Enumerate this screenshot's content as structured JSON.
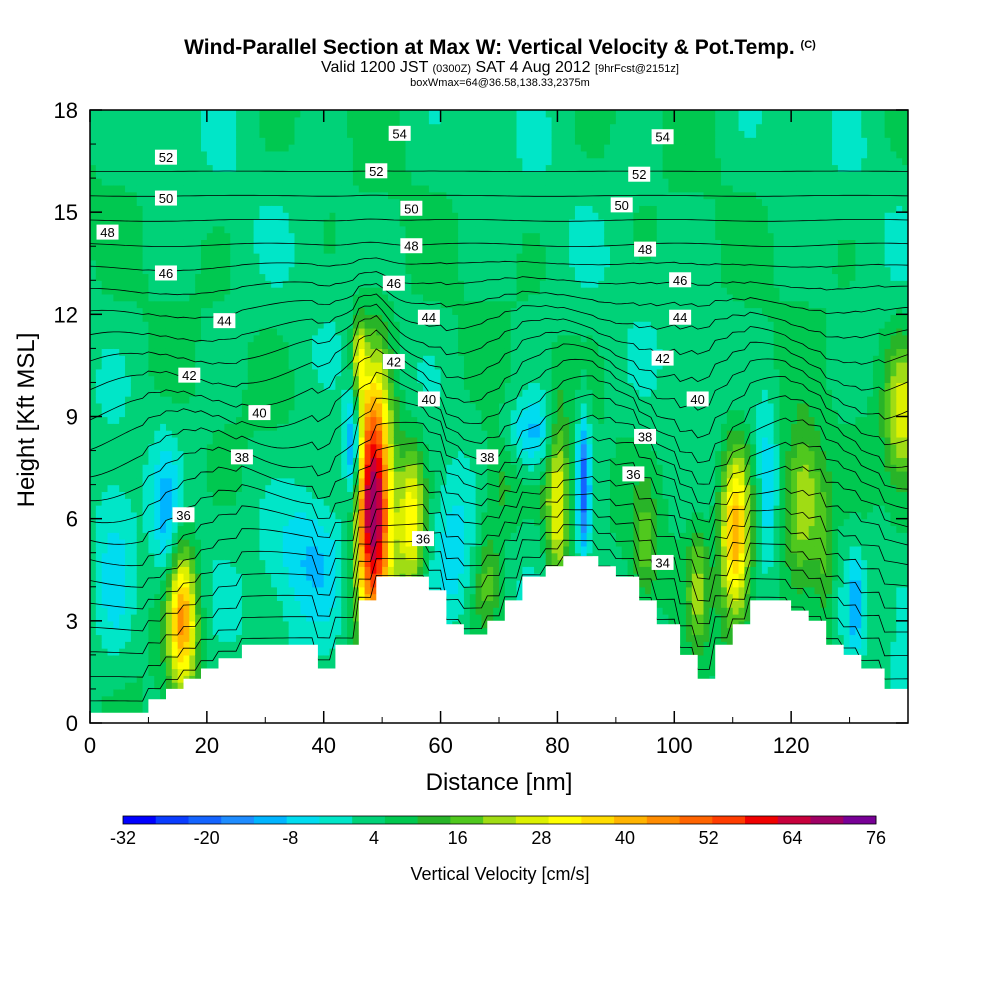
{
  "header": {
    "title": "Wind-Parallel Section at Max W: Vertical Velocity & Pot.Temp.",
    "title_mark": "(C)",
    "valid_prefix": "Valid 1200 JST",
    "valid_utc": "(0300Z)",
    "valid_date": "SAT 4 Aug 2012",
    "forecast_info": "[9hrFcst@2151z]",
    "box_info": "boxWmax=64@36.58,138.33,2375m"
  },
  "chart_data": {
    "type": "heatmap",
    "xlabel": "Distance [nm]",
    "ylabel": "Height [Kft MSL]",
    "xlim": [
      0,
      140
    ],
    "ylim": [
      0,
      18
    ],
    "x_ticks": [
      "0",
      "20",
      "40",
      "60",
      "80",
      "100",
      "120"
    ],
    "y_ticks": [
      "0",
      "3",
      "6",
      "9",
      "12",
      "15",
      "18"
    ],
    "colorbar": {
      "title": "Vertical Velocity [cm/s]",
      "tick_labels": [
        "-32",
        "-20",
        "-8",
        "4",
        "16",
        "28",
        "40",
        "52",
        "64",
        "76"
      ],
      "min": -32,
      "max": 76,
      "colors": [
        "#0000ff",
        "#0a3cff",
        "#1464ff",
        "#1e8cff",
        "#00b4ff",
        "#00dcf0",
        "#00e6c8",
        "#00d278",
        "#00c850",
        "#28b428",
        "#50c81e",
        "#a0dc14",
        "#dcf000",
        "#ffff00",
        "#ffdc00",
        "#ffb400",
        "#ff8c00",
        "#ff6400",
        "#ff3c00",
        "#f00000",
        "#c8003c",
        "#a00064",
        "#780096"
      ]
    },
    "theta_contours": {
      "units": "potential temperature",
      "labels": [
        {
          "text": "54",
          "x": 53,
          "y": 17.3
        },
        {
          "text": "54",
          "x": 98,
          "y": 17.2
        },
        {
          "text": "52",
          "x": 13,
          "y": 16.6
        },
        {
          "text": "52",
          "x": 49,
          "y": 16.2
        },
        {
          "text": "52",
          "x": 94,
          "y": 16.1
        },
        {
          "text": "50",
          "x": 13,
          "y": 15.4
        },
        {
          "text": "50",
          "x": 55,
          "y": 15.1
        },
        {
          "text": "50",
          "x": 91,
          "y": 15.2
        },
        {
          "text": "48",
          "x": 3,
          "y": 14.4
        },
        {
          "text": "48",
          "x": 55,
          "y": 14.0
        },
        {
          "text": "48",
          "x": 95,
          "y": 13.9
        },
        {
          "text": "46",
          "x": 13,
          "y": 13.2
        },
        {
          "text": "46",
          "x": 52,
          "y": 12.9
        },
        {
          "text": "46",
          "x": 101,
          "y": 13.0
        },
        {
          "text": "44",
          "x": 23,
          "y": 11.8
        },
        {
          "text": "44",
          "x": 58,
          "y": 11.9
        },
        {
          "text": "44",
          "x": 101,
          "y": 11.9
        },
        {
          "text": "42",
          "x": 17,
          "y": 10.2
        },
        {
          "text": "42",
          "x": 52,
          "y": 10.6
        },
        {
          "text": "42",
          "x": 98,
          "y": 10.7
        },
        {
          "text": "40",
          "x": 29,
          "y": 9.1
        },
        {
          "text": "40",
          "x": 58,
          "y": 9.5
        },
        {
          "text": "40",
          "x": 104,
          "y": 9.5
        },
        {
          "text": "38",
          "x": 26,
          "y": 7.8
        },
        {
          "text": "38",
          "x": 68,
          "y": 7.8
        },
        {
          "text": "38",
          "x": 95,
          "y": 8.4
        },
        {
          "text": "36",
          "x": 16,
          "y": 6.1
        },
        {
          "text": "36",
          "x": 57,
          "y": 5.4
        },
        {
          "text": "36",
          "x": 93,
          "y": 7.3
        },
        {
          "text": "34",
          "x": 98,
          "y": 4.7
        }
      ]
    },
    "terrain": [
      [
        0,
        0.3
      ],
      [
        10,
        0.3
      ],
      [
        10,
        0.7
      ],
      [
        13,
        0.7
      ],
      [
        13,
        1.0
      ],
      [
        16,
        1.0
      ],
      [
        16,
        1.3
      ],
      [
        19,
        1.3
      ],
      [
        19,
        1.6
      ],
      [
        22,
        1.6
      ],
      [
        22,
        1.9
      ],
      [
        26,
        1.9
      ],
      [
        26,
        2.3
      ],
      [
        39,
        2.3
      ],
      [
        39,
        1.6
      ],
      [
        42,
        1.6
      ],
      [
        42,
        2.3
      ],
      [
        46,
        2.3
      ],
      [
        46,
        3.6
      ],
      [
        49,
        3.6
      ],
      [
        49,
        4.3
      ],
      [
        58,
        4.3
      ],
      [
        58,
        3.9
      ],
      [
        61,
        3.9
      ],
      [
        61,
        2.9
      ],
      [
        64,
        2.9
      ],
      [
        64,
        2.6
      ],
      [
        68,
        2.6
      ],
      [
        68,
        3.0
      ],
      [
        71,
        3.0
      ],
      [
        71,
        3.6
      ],
      [
        74,
        3.6
      ],
      [
        74,
        4.3
      ],
      [
        78,
        4.3
      ],
      [
        78,
        4.6
      ],
      [
        81,
        4.6
      ],
      [
        81,
        4.9
      ],
      [
        87,
        4.9
      ],
      [
        87,
        4.6
      ],
      [
        90,
        4.6
      ],
      [
        90,
        4.3
      ],
      [
        94,
        4.3
      ],
      [
        94,
        3.6
      ],
      [
        97,
        3.6
      ],
      [
        97,
        2.9
      ],
      [
        101,
        2.9
      ],
      [
        101,
        2.0
      ],
      [
        104,
        2.0
      ],
      [
        104,
        1.3
      ],
      [
        107,
        1.3
      ],
      [
        107,
        2.3
      ],
      [
        110,
        2.3
      ],
      [
        110,
        2.9
      ],
      [
        113,
        2.9
      ],
      [
        113,
        3.6
      ],
      [
        120,
        3.6
      ],
      [
        120,
        3.3
      ],
      [
        123,
        3.3
      ],
      [
        123,
        3.0
      ],
      [
        126,
        3.0
      ],
      [
        126,
        2.3
      ],
      [
        129,
        2.3
      ],
      [
        129,
        2.0
      ],
      [
        132,
        2.0
      ],
      [
        132,
        1.6
      ],
      [
        136,
        1.6
      ],
      [
        136,
        1.0
      ],
      [
        140,
        1.0
      ]
    ],
    "w_features": [
      {
        "x": 48.5,
        "y": 6.5,
        "sx": 2.2,
        "sy": 2.6,
        "v": 70
      },
      {
        "x": 45.0,
        "y": 8.0,
        "sx": 1.0,
        "sy": 1.2,
        "v": -30
      },
      {
        "x": 15.8,
        "y": 3.0,
        "sx": 1.8,
        "sy": 1.5,
        "v": 40
      },
      {
        "x": 55.0,
        "y": 6.0,
        "sx": 1.6,
        "sy": 1.5,
        "v": 28
      },
      {
        "x": 80.0,
        "y": 6.5,
        "sx": 1.4,
        "sy": 2.0,
        "v": 25
      },
      {
        "x": 84.5,
        "y": 7.0,
        "sx": 0.8,
        "sy": 1.5,
        "v": -25
      },
      {
        "x": 110.5,
        "y": 5.5,
        "sx": 1.8,
        "sy": 1.8,
        "v": 38
      },
      {
        "x": 122.0,
        "y": 6.5,
        "sx": 2.5,
        "sy": 1.5,
        "v": 24
      },
      {
        "x": 76.0,
        "y": 8.5,
        "sx": 3.0,
        "sy": 0.8,
        "v": -16
      },
      {
        "x": 38.0,
        "y": 5.0,
        "sx": 5.0,
        "sy": 1.5,
        "v": -14
      },
      {
        "x": 13.0,
        "y": 6.0,
        "sx": 1.5,
        "sy": 1.5,
        "v": -12
      },
      {
        "x": 139.0,
        "y": 9.0,
        "sx": 2.0,
        "sy": 1.5,
        "v": 22
      },
      {
        "x": 131.0,
        "y": 3.5,
        "sx": 0.8,
        "sy": 1.0,
        "v": -14
      },
      {
        "x": 139.0,
        "y": 3.0,
        "sx": 1.0,
        "sy": 1.0,
        "v": -10
      },
      {
        "x": 104.0,
        "y": 4.0,
        "sx": 1.2,
        "sy": 1.4,
        "v": 14
      },
      {
        "x": 95.0,
        "y": 5.0,
        "sx": 1.5,
        "sy": 1.2,
        "v": 12
      },
      {
        "x": 62.0,
        "y": 5.0,
        "sx": 2.5,
        "sy": 1.5,
        "v": -10
      },
      {
        "x": 46.0,
        "y": 10.8,
        "sx": 0.8,
        "sy": 0.8,
        "v": 20
      },
      {
        "x": 4.0,
        "y": 4.5,
        "sx": 2.5,
        "sy": 2.0,
        "v": -10
      },
      {
        "x": 70.0,
        "y": 7.0,
        "sx": 2.5,
        "sy": 1.2,
        "v": 10
      },
      {
        "x": 68.0,
        "y": 4.2,
        "sx": 1.5,
        "sy": 1.0,
        "v": 12
      },
      {
        "x": 116.0,
        "y": 7.0,
        "sx": 1.2,
        "sy": 1.5,
        "v": -12
      },
      {
        "x": 126.0,
        "y": 4.5,
        "sx": 1.2,
        "sy": 1.5,
        "v": 10
      }
    ]
  }
}
